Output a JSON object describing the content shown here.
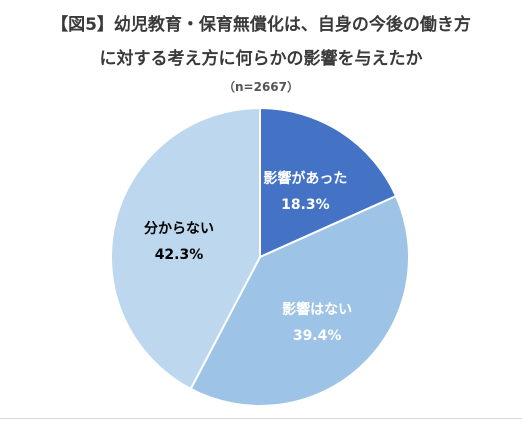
{
  "chart_data": {
    "type": "pie",
    "title_lines": [
      "【図5】幼児教育・保育無償化は、自身の今後の働き方",
      "に対する考え方に何らかの影響を与えたか"
    ],
    "subtitle": "（n=2667）",
    "slices": [
      {
        "label": "影響があった",
        "value": 18.3,
        "value_label": "18.3%",
        "color": "#4472c4",
        "text_color": "#ffffff"
      },
      {
        "label": "影響はない",
        "value": 39.4,
        "value_label": "39.4%",
        "color": "#9dc3e6",
        "text_color": "#ffffff"
      },
      {
        "label": "分からない",
        "value": 42.3,
        "value_label": "42.3%",
        "color": "#bdd7ee",
        "text_color": "#000000"
      }
    ],
    "start_angle_deg": 0,
    "direction": "clockwise",
    "legend": "none"
  }
}
